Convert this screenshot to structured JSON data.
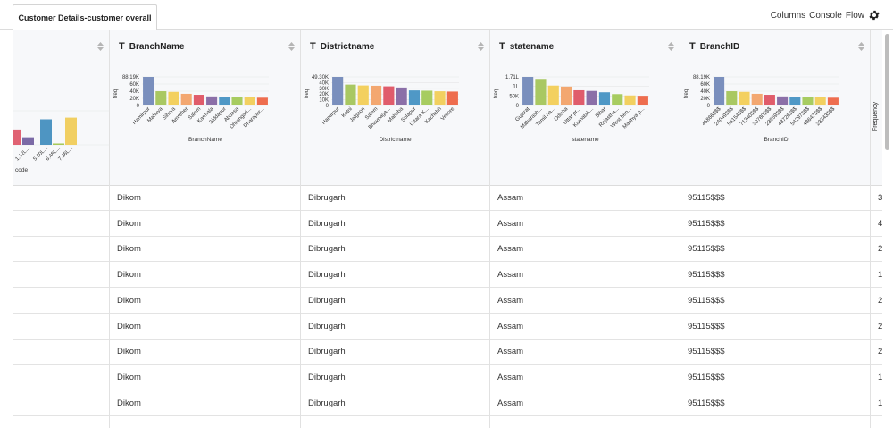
{
  "tab": {
    "title": "Customer Details-customer overall"
  },
  "toolbar": {
    "columns": "Columns",
    "console": "Console",
    "flow": "Flow",
    "settings_icon": "gear-icon"
  },
  "columns": [
    {
      "name": "",
      "type_icon": "",
      "xlabel": "code",
      "chart_data": {
        "type": "bar",
        "categories": [
          "",
          "1.12L...",
          "5.80L...",
          "6.48L...",
          "7.16L..."
        ],
        "values": [
          0.45,
          0.22,
          0.75,
          0.04,
          0.8
        ],
        "colors": [
          "#e06273",
          "#7b6aa6",
          "#4e95c2",
          "#a6c95a",
          "#f1cf62"
        ]
      }
    },
    {
      "name": "BranchName",
      "type_icon": "T",
      "xlabel": "BranchName",
      "chart_data": {
        "type": "bar",
        "ylabel": "freq",
        "yticks": [
          "88.19K",
          "60K",
          "40K",
          "20K",
          "0"
        ],
        "categories": [
          "Hamirpur",
          "Mahuva",
          "Sihora",
          "Amreher",
          "Salem",
          "Karmala",
          "Siddapur",
          "Abdasa",
          "Dhrangad...",
          "Dharapur..."
        ],
        "values": [
          88.19,
          44,
          42,
          36,
          33,
          28,
          27,
          26,
          25,
          24
        ],
        "colors": [
          "#7a8fbd",
          "#a9c862",
          "#f3d05f",
          "#f3a770",
          "#e05c6b",
          "#8b6fa8",
          "#4f98c6",
          "#a7cc60",
          "#f2d060",
          "#ee6d4e"
        ]
      }
    },
    {
      "name": "Districtname",
      "type_icon": "T",
      "xlabel": "Districtname",
      "chart_data": {
        "type": "bar",
        "ylabel": "freq",
        "yticks": [
          "49.30K",
          "40K",
          "30K",
          "20K",
          "10K",
          "0"
        ],
        "categories": [
          "Hamirpur",
          "Kotni",
          "Jalgaon",
          "Salem",
          "Bhavnaga...",
          "Mahoba",
          "Solapur",
          "Uttara K...",
          "Kachchh",
          "Vellore"
        ],
        "values": [
          49.3,
          36,
          34.5,
          34,
          33,
          31,
          26,
          25.5,
          24.5,
          24
        ],
        "colors": [
          "#7a8fbd",
          "#a9c862",
          "#f3d05f",
          "#f3a770",
          "#e05c6b",
          "#8b6fa8",
          "#4f98c6",
          "#a7cc60",
          "#f2d060",
          "#ee6d4e"
        ]
      }
    },
    {
      "name": "statename",
      "type_icon": "T",
      "xlabel": "statename",
      "chart_data": {
        "type": "bar",
        "ylabel": "freq",
        "yticks": [
          "1.71L",
          "1L",
          "50K",
          "0"
        ],
        "categories": [
          "Gujarat",
          "Maharash...",
          "Tamil na...",
          "Odisha",
          "Uttar pr...",
          "Karnatak...",
          "Bihar",
          "Rajastha...",
          "West ben...",
          "Madhya p..."
        ],
        "values": [
          171,
          159,
          119,
          113,
          91,
          87,
          79,
          68,
          60,
          58
        ],
        "colors": [
          "#7a8fbd",
          "#a9c862",
          "#f3d05f",
          "#f3a770",
          "#e05c6b",
          "#8b6fa8",
          "#4f98c6",
          "#a7cc60",
          "#f2d060",
          "#ee6d4e"
        ]
      }
    },
    {
      "name": "BranchID",
      "type_icon": "T",
      "xlabel": "BranchID",
      "chart_data": {
        "type": "bar",
        "ylabel": "freq",
        "yticks": [
          "88.19K",
          "60K",
          "40K",
          "20K",
          "0"
        ],
        "categories": [
          "45866$$$",
          "24049$$$",
          "56154$$$",
          "71340$$$",
          "20780$$$",
          "23959$$$",
          "48726$$$",
          "54297$$$",
          "48647$$$",
          "23343$$$"
        ],
        "values": [
          88.19,
          44,
          42,
          36,
          33,
          28,
          27,
          26,
          25,
          24
        ],
        "colors": [
          "#7a8fbd",
          "#a9c862",
          "#f3d05f",
          "#f3a770",
          "#e05c6b",
          "#8b6fa8",
          "#4f98c6",
          "#a7cc60",
          "#f2d060",
          "#ee6d4e"
        ]
      }
    },
    {
      "name": "",
      "type_icon": "",
      "xlabel": "Frequency"
    }
  ],
  "rows": [
    {
      "branch": "Dikom",
      "district": "Dibrugarh",
      "state": "Assam",
      "branchid": "95115$$$",
      "freq": "3"
    },
    {
      "branch": "Dikom",
      "district": "Dibrugarh",
      "state": "Assam",
      "branchid": "95115$$$",
      "freq": "4"
    },
    {
      "branch": "Dikom",
      "district": "Dibrugarh",
      "state": "Assam",
      "branchid": "95115$$$",
      "freq": "2"
    },
    {
      "branch": "Dikom",
      "district": "Dibrugarh",
      "state": "Assam",
      "branchid": "95115$$$",
      "freq": "1"
    },
    {
      "branch": "Dikom",
      "district": "Dibrugarh",
      "state": "Assam",
      "branchid": "95115$$$",
      "freq": "2"
    },
    {
      "branch": "Dikom",
      "district": "Dibrugarh",
      "state": "Assam",
      "branchid": "95115$$$",
      "freq": "2"
    },
    {
      "branch": "Dikom",
      "district": "Dibrugarh",
      "state": "Assam",
      "branchid": "95115$$$",
      "freq": "2"
    },
    {
      "branch": "Dikom",
      "district": "Dibrugarh",
      "state": "Assam",
      "branchid": "95115$$$",
      "freq": "1"
    },
    {
      "branch": "Dikom",
      "district": "Dibrugarh",
      "state": "Assam",
      "branchid": "95115$$$",
      "freq": "1"
    }
  ]
}
